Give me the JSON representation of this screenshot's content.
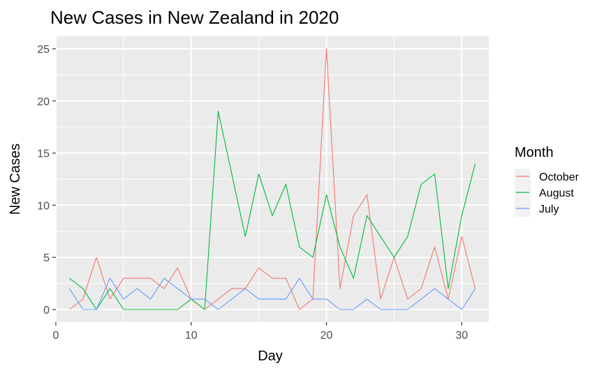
{
  "chart_data": {
    "type": "line",
    "title": "New Cases in New Zealand in 2020",
    "xlabel": "Day",
    "ylabel": "New Cases",
    "xlim": [
      0,
      32
    ],
    "ylim": [
      -1.2,
      26.2
    ],
    "xticks": [
      0,
      10,
      20,
      30
    ],
    "yticks": [
      0,
      5,
      10,
      15,
      20,
      25
    ],
    "grid": true,
    "legend": {
      "title": "Month",
      "position": "right"
    },
    "x": [
      1,
      2,
      3,
      4,
      5,
      6,
      7,
      8,
      9,
      10,
      11,
      12,
      13,
      14,
      15,
      16,
      17,
      18,
      19,
      20,
      21,
      22,
      23,
      24,
      25,
      26,
      27,
      28,
      29,
      30,
      31
    ],
    "series": [
      {
        "name": "October",
        "color": "#F8766D",
        "values": [
          0,
          1,
          5,
          1,
          3,
          3,
          3,
          2,
          4,
          1,
          0,
          1,
          2,
          2,
          4,
          3,
          3,
          0,
          1,
          25,
          2,
          9,
          11,
          1,
          5,
          1,
          2,
          6,
          1,
          7,
          2
        ]
      },
      {
        "name": "August",
        "color": "#00BA38",
        "values": [
          3,
          2,
          0,
          2,
          0,
          0,
          0,
          0,
          0,
          1,
          0,
          19,
          13,
          7,
          13,
          9,
          12,
          6,
          5,
          11,
          6,
          3,
          9,
          7,
          5,
          7,
          12,
          13,
          2,
          9,
          14
        ]
      },
      {
        "name": "July",
        "color": "#619CFF",
        "values": [
          2,
          0,
          0,
          3,
          1,
          2,
          1,
          3,
          2,
          1,
          1,
          0,
          1,
          2,
          1,
          1,
          1,
          3,
          1,
          1,
          0,
          0,
          1,
          0,
          0,
          0,
          1,
          2,
          1,
          0,
          2
        ]
      }
    ]
  }
}
